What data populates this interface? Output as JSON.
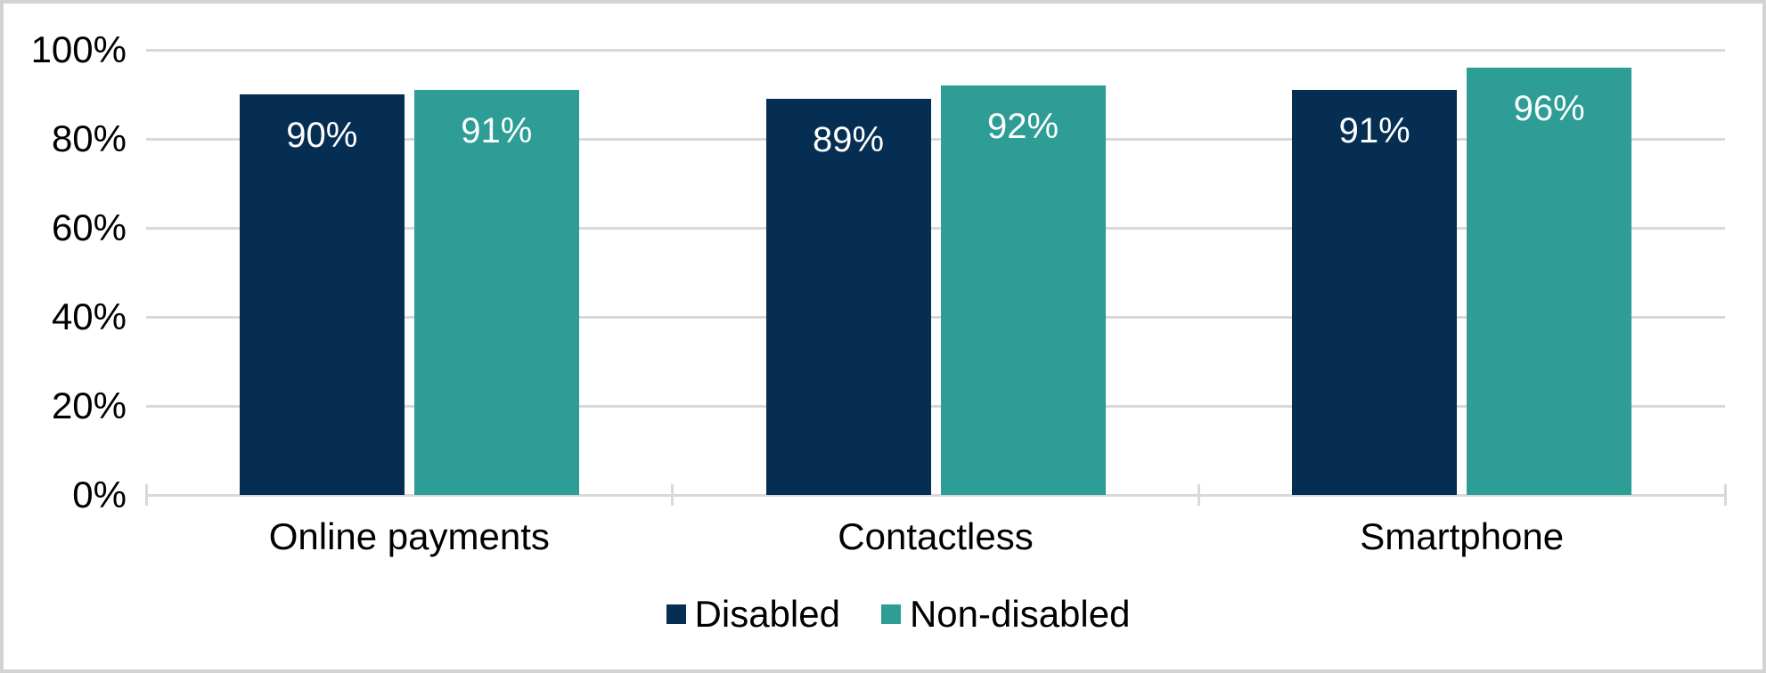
{
  "frame": {
    "background_color": "#ffffff",
    "border_color": "#d3d3d3"
  },
  "chart_data": {
    "type": "bar",
    "title": "",
    "categories": [
      "Online payments",
      "Contactless",
      "Smartphone"
    ],
    "series": [
      {
        "name": "Disabled",
        "color": "#052e52",
        "values": [
          90,
          89,
          91
        ],
        "labels": [
          "90%",
          "89%",
          "91%"
        ]
      },
      {
        "name": "Non-disabled",
        "color": "#2d9d96",
        "values": [
          91,
          92,
          96
        ],
        "labels": [
          "91%",
          "92%",
          "96%"
        ]
      }
    ],
    "y_axis": {
      "range": [
        0,
        100
      ],
      "tick_values": [
        0,
        20,
        40,
        60,
        80,
        100
      ],
      "tick_labels": [
        "0%",
        "20%",
        "40%",
        "60%",
        "80%",
        "100%"
      ]
    },
    "grid": true,
    "gridline_color": "#d9d9d9",
    "value_label_color": "#ffffff",
    "text_color": "#000000",
    "legend_position": "bottom"
  }
}
